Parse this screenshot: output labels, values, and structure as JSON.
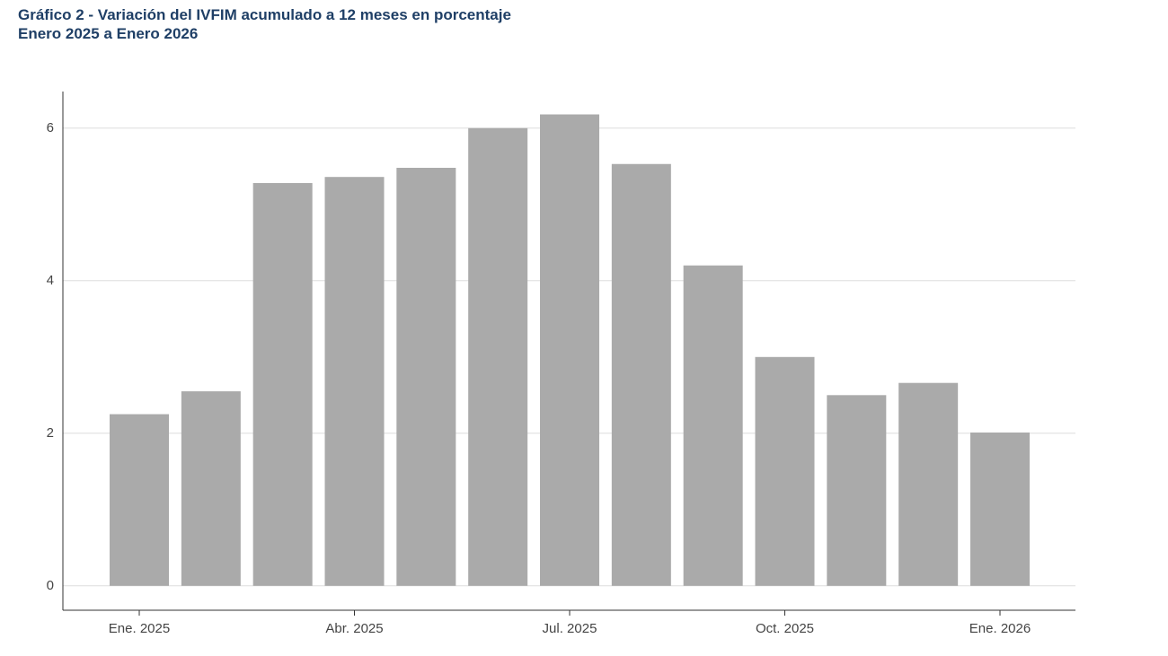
{
  "chart_data": {
    "type": "bar",
    "title": "Gráfico 2 - Variación del IVFIM acumulado a 12 meses en porcentaje",
    "subtitle": "Enero 2025 a Enero 2026",
    "categories": [
      "Ene. 2025",
      null,
      null,
      "Abr. 2025",
      null,
      null,
      "Jul. 2025",
      null,
      null,
      "Oct. 2025",
      null,
      null,
      "Ene. 2026"
    ],
    "values": [
      2.25,
      2.55,
      5.28,
      5.36,
      5.48,
      6.0,
      6.18,
      5.53,
      4.2,
      3.0,
      2.5,
      2.66,
      2.01
    ],
    "color": "#aaaaaa",
    "ylim": [
      -0.32,
      6.48
    ],
    "yticks": [
      0,
      2,
      4,
      6
    ],
    "grid": true
  }
}
